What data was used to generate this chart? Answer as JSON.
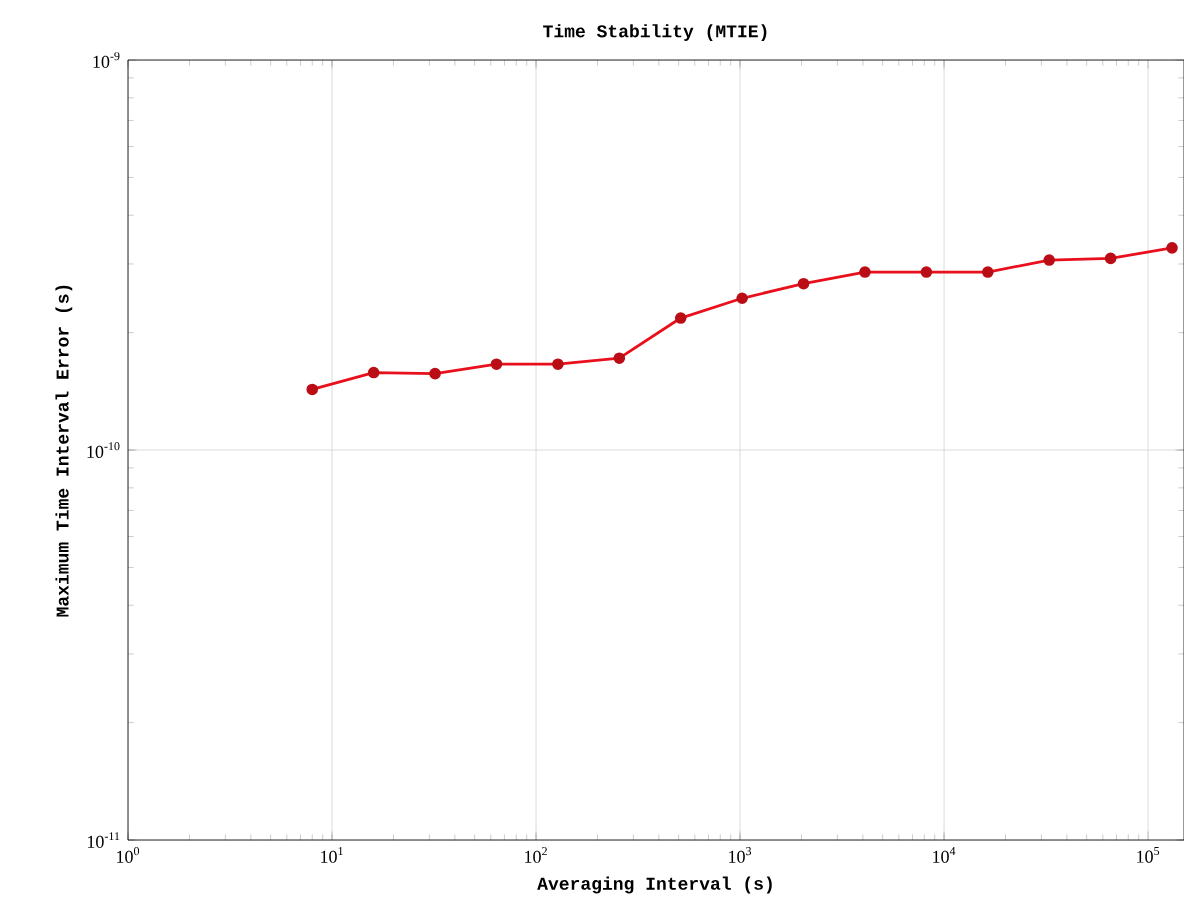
{
  "chart_data": {
    "type": "line",
    "title": "Time Stability (MTIE)",
    "xlabel": "Averaging Interval (s)",
    "ylabel": "Maximum Time Interval Error (s)",
    "log": "xy",
    "grid": true,
    "marker": "circle",
    "line_style": "solid",
    "xlim": [
      1,
      150000
    ],
    "ylim": [
      1e-11,
      1e-09
    ],
    "xticks": [
      {
        "value": 1,
        "label": "10$^{0}$"
      },
      {
        "value": 10,
        "label": "10$^{1}$"
      },
      {
        "value": 100,
        "label": "10$^{2}$"
      },
      {
        "value": 1000,
        "label": "10$^{3}$"
      },
      {
        "value": 10000,
        "label": "10$^{4}$"
      },
      {
        "value": 100000,
        "label": "10$^{5}$"
      }
    ],
    "yticks": [
      {
        "value": 1e-11,
        "label": "10$^{-11}$"
      },
      {
        "value": 1e-10,
        "label": "10$^{-10}$"
      },
      {
        "value": 1e-09,
        "label": "10$^{-9}$"
      }
    ],
    "x": [
      8,
      16,
      32,
      64,
      128,
      256,
      512,
      1024,
      2048,
      4096,
      8192,
      16384,
      32768,
      65536,
      131072
    ],
    "series": [
      {
        "color": "#e8101c",
        "values": [
          1.43e-10,
          1.58e-10,
          1.57e-10,
          1.66e-10,
          1.66e-10,
          1.72e-10,
          2.18e-10,
          2.45e-10,
          2.67e-10,
          2.86e-10,
          2.86e-10,
          2.86e-10,
          3.07e-10,
          3.1e-10,
          3.3e-10
        ]
      }
    ]
  }
}
